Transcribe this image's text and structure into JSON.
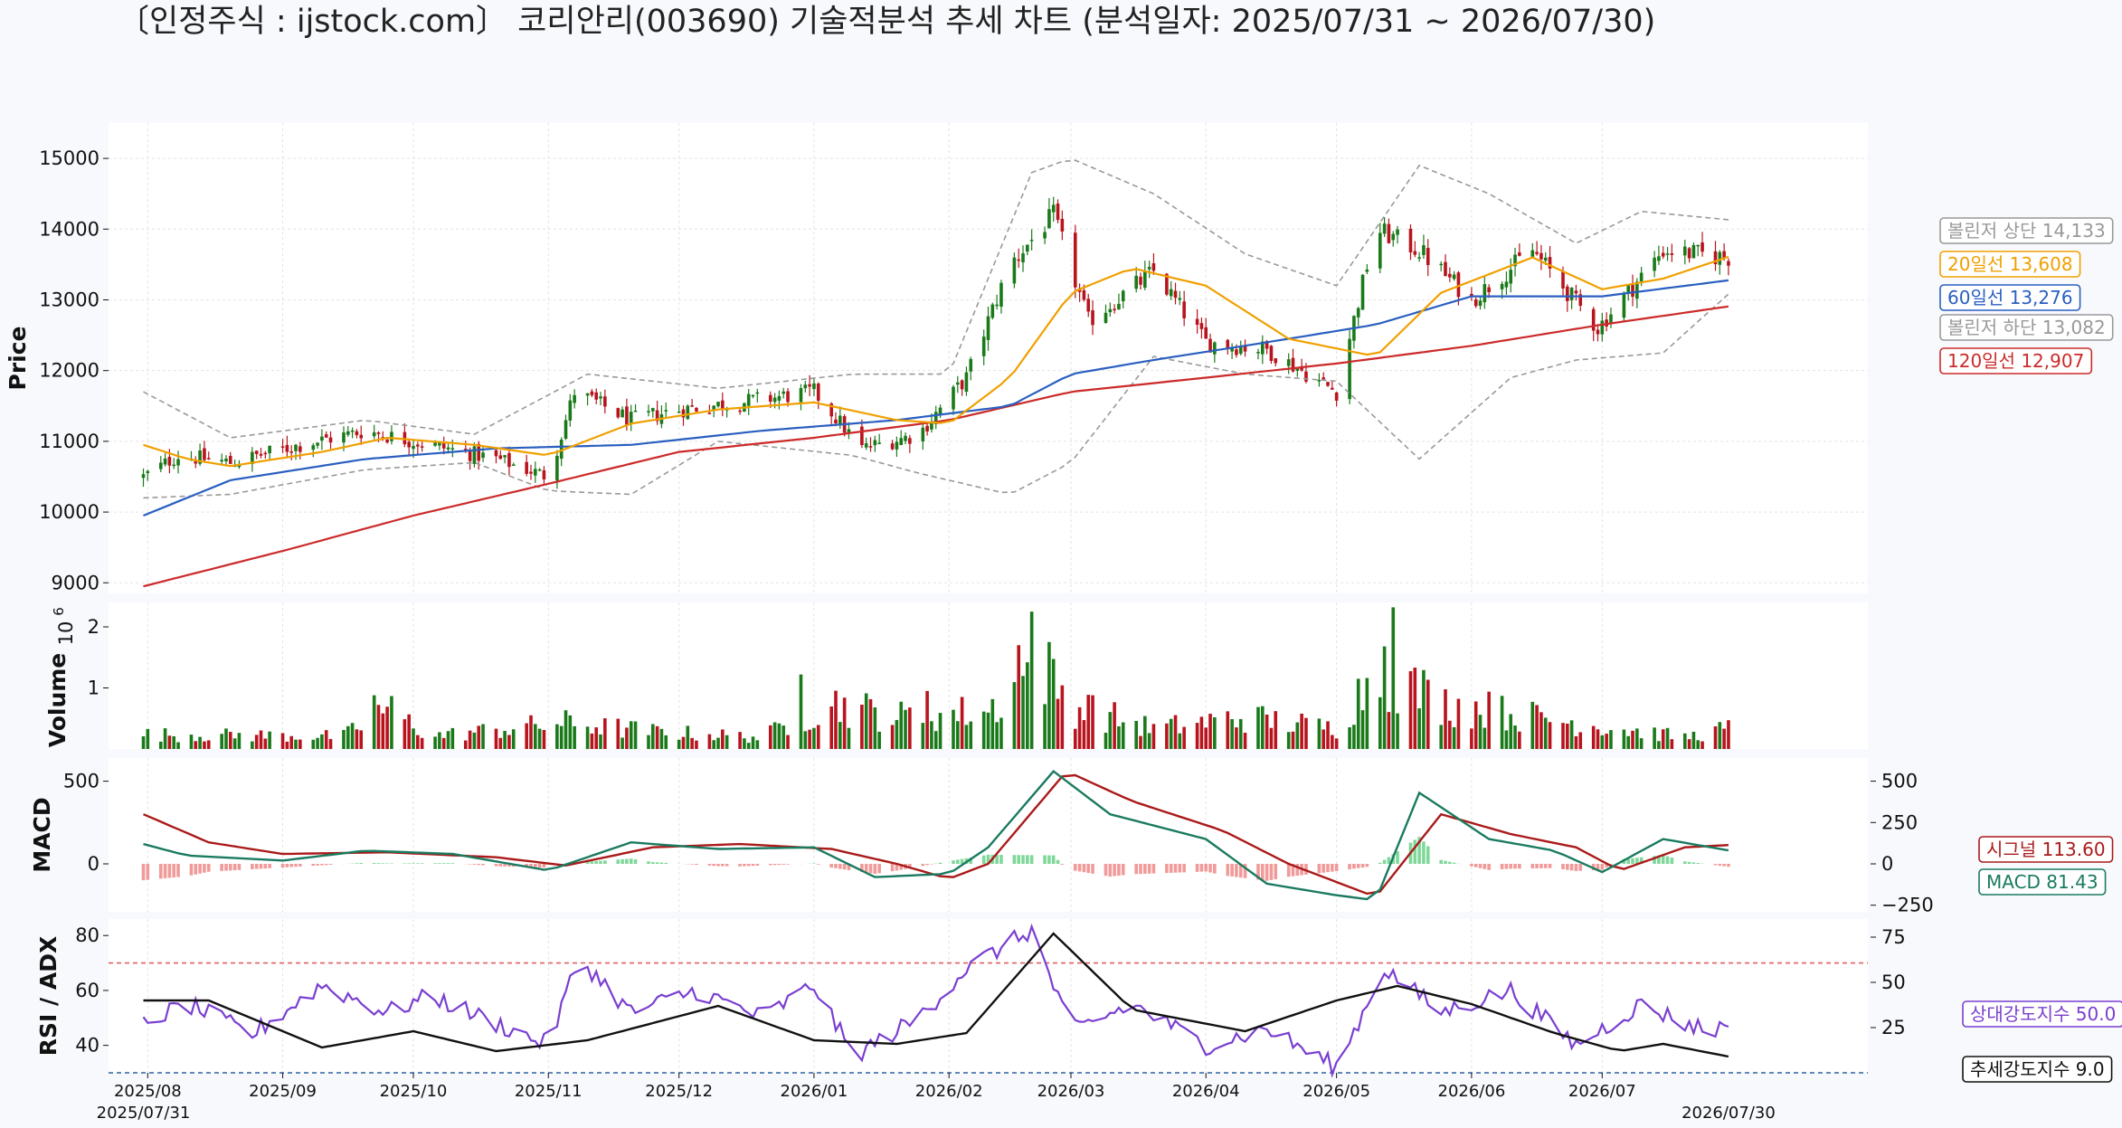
{
  "title": "〔인정주식 : ijstock.com〕 코리안리(003690) 기술적분석 추세 차트 (분석일자: 2025/07/31 ~ 2026/07/30)",
  "colors": {
    "up": "#1a7a1a",
    "down": "#b8141e",
    "ma20": "#f0a000",
    "ma60": "#2a5fc0",
    "ma120": "#cc2a2a",
    "bollinger": "#999999",
    "macd": "#1a7a60",
    "signal": "#aa1a1a",
    "hist_pos": "#7fd89a",
    "hist_neg": "#f19a9a",
    "rsi": "#7a3fd0",
    "adx": "#111111",
    "rsi_upper": "#e06060",
    "rsi_lower": "#3060a0"
  },
  "chart_data": [
    {
      "type": "candlestick",
      "ylabel": "Price",
      "ylim": [
        8850,
        15500
      ],
      "yticks": [
        9000,
        10000,
        11000,
        12000,
        13000,
        14000,
        15000
      ],
      "xlim": [
        "2025-07-23",
        "2026-08-31"
      ],
      "x_ticks": [
        {
          "date": "2025-08-01",
          "label": "2025/08"
        },
        {
          "date": "2025-09-01",
          "label": "2025/09"
        },
        {
          "date": "2025-10-01",
          "label": "2025/10"
        },
        {
          "date": "2025-11-01",
          "label": "2025/11"
        },
        {
          "date": "2025-12-01",
          "label": "2025/12"
        },
        {
          "date": "2026-01-01",
          "label": "2026/01"
        },
        {
          "date": "2026-02-01",
          "label": "2026/02"
        },
        {
          "date": "2026-03-01",
          "label": "2026/03"
        },
        {
          "date": "2026-04-01",
          "label": "2026/04"
        },
        {
          "date": "2026-05-01",
          "label": "2026/05"
        },
        {
          "date": "2026-06-01",
          "label": "2026/06"
        },
        {
          "date": "2026-07-01",
          "label": "2026/07"
        }
      ],
      "x_edge_labels": [
        {
          "date": "2025-07-31",
          "label": "2025/07/31"
        },
        {
          "date": "2026-07-30",
          "label": "2026/07/30"
        }
      ],
      "price_path": [
        [
          "2025-07-31",
          10500
        ],
        [
          "2025-08-08",
          10800
        ],
        [
          "2025-08-20",
          10700
        ],
        [
          "2025-09-05",
          10950
        ],
        [
          "2025-09-20",
          11150
        ],
        [
          "2025-10-01",
          11000
        ],
        [
          "2025-10-20",
          10750
        ],
        [
          "2025-11-01",
          10500
        ],
        [
          "2025-11-07",
          11700
        ],
        [
          "2025-11-20",
          11300
        ],
        [
          "2025-12-01",
          11450
        ],
        [
          "2025-12-15",
          11550
        ],
        [
          "2026-01-01",
          11700
        ],
        [
          "2026-01-12",
          10900
        ],
        [
          "2026-01-25",
          11100
        ],
        [
          "2026-02-05",
          11900
        ],
        [
          "2026-02-15",
          13500
        ],
        [
          "2026-02-25",
          14200
        ],
        [
          "2026-03-05",
          12700
        ],
        [
          "2026-03-20",
          13400
        ],
        [
          "2026-04-01",
          12400
        ],
        [
          "2026-04-15",
          12300
        ],
        [
          "2026-05-01",
          11700
        ],
        [
          "2026-05-10",
          14000
        ],
        [
          "2026-05-20",
          13700
        ],
        [
          "2026-06-01",
          13000
        ],
        [
          "2026-06-15",
          13700
        ],
        [
          "2026-06-30",
          12600
        ],
        [
          "2026-07-15",
          13700
        ],
        [
          "2026-07-30",
          13600
        ]
      ],
      "ma20": [
        [
          "2025-07-31",
          10950
        ],
        [
          "2025-08-10",
          10750
        ],
        [
          "2025-08-20",
          10650
        ],
        [
          "2025-09-10",
          10850
        ],
        [
          "2025-09-25",
          11050
        ],
        [
          "2025-10-15",
          10950
        ],
        [
          "2025-11-01",
          10800
        ],
        [
          "2025-11-20",
          11250
        ],
        [
          "2025-12-10",
          11450
        ],
        [
          "2026-01-01",
          11550
        ],
        [
          "2026-01-20",
          11300
        ],
        [
          "2026-02-01",
          11250
        ],
        [
          "2026-02-15",
          11900
        ],
        [
          "2026-03-01",
          13100
        ],
        [
          "2026-03-15",
          13450
        ],
        [
          "2026-04-01",
          13200
        ],
        [
          "2026-04-20",
          12450
        ],
        [
          "2026-05-10",
          12200
        ],
        [
          "2026-05-25",
          13100
        ],
        [
          "2026-06-15",
          13600
        ],
        [
          "2026-07-01",
          13150
        ],
        [
          "2026-07-15",
          13300
        ],
        [
          "2026-07-30",
          13608
        ]
      ],
      "ma60": [
        [
          "2025-07-31",
          9950
        ],
        [
          "2025-08-20",
          10450
        ],
        [
          "2025-09-20",
          10750
        ],
        [
          "2025-10-20",
          10900
        ],
        [
          "2025-11-20",
          10950
        ],
        [
          "2025-12-20",
          11150
        ],
        [
          "2026-01-20",
          11300
        ],
        [
          "2026-02-15",
          11500
        ],
        [
          "2026-03-01",
          11950
        ],
        [
          "2026-03-20",
          12150
        ],
        [
          "2026-04-15",
          12400
        ],
        [
          "2026-05-10",
          12650
        ],
        [
          "2026-06-01",
          13050
        ],
        [
          "2026-07-01",
          13050
        ],
        [
          "2026-07-30",
          13276
        ]
      ],
      "ma120": [
        [
          "2025-07-31",
          8950
        ],
        [
          "2025-09-01",
          9450
        ],
        [
          "2025-10-01",
          9950
        ],
        [
          "2025-11-01",
          10400
        ],
        [
          "2025-12-01",
          10850
        ],
        [
          "2026-01-01",
          11050
        ],
        [
          "2026-02-01",
          11300
        ],
        [
          "2026-03-01",
          11700
        ],
        [
          "2026-04-01",
          11900
        ],
        [
          "2026-05-01",
          12100
        ],
        [
          "2026-06-01",
          12350
        ],
        [
          "2026-07-01",
          12650
        ],
        [
          "2026-07-30",
          12907
        ]
      ],
      "bollinger_upper": [
        [
          "2025-07-31",
          11700
        ],
        [
          "2025-08-20",
          11050
        ],
        [
          "2025-09-20",
          11300
        ],
        [
          "2025-10-15",
          11100
        ],
        [
          "2025-11-10",
          11950
        ],
        [
          "2025-12-10",
          11750
        ],
        [
          "2026-01-10",
          11950
        ],
        [
          "2026-02-01",
          11950
        ],
        [
          "2026-02-20",
          14800
        ],
        [
          "2026-03-01",
          15000
        ],
        [
          "2026-03-20",
          14500
        ],
        [
          "2026-04-10",
          13650
        ],
        [
          "2026-05-01",
          13200
        ],
        [
          "2026-05-20",
          14900
        ],
        [
          "2026-06-05",
          14500
        ],
        [
          "2026-06-25",
          13800
        ],
        [
          "2026-07-10",
          14250
        ],
        [
          "2026-07-30",
          14133
        ]
      ],
      "bollinger_lower": [
        [
          "2025-07-31",
          10200
        ],
        [
          "2025-08-20",
          10250
        ],
        [
          "2025-09-20",
          10600
        ],
        [
          "2025-10-15",
          10700
        ],
        [
          "2025-11-01",
          10300
        ],
        [
          "2025-11-20",
          10250
        ],
        [
          "2025-12-10",
          11000
        ],
        [
          "2026-01-10",
          10800
        ],
        [
          "2026-01-25",
          10550
        ],
        [
          "2026-02-15",
          10250
        ],
        [
          "2026-03-01",
          10700
        ],
        [
          "2026-03-20",
          12200
        ],
        [
          "2026-04-10",
          11950
        ],
        [
          "2026-05-01",
          11850
        ],
        [
          "2026-05-20",
          10750
        ],
        [
          "2026-06-10",
          11900
        ],
        [
          "2026-06-25",
          12150
        ],
        [
          "2026-07-15",
          12250
        ],
        [
          "2026-07-30",
          13082
        ]
      ],
      "legend": [
        {
          "label": "볼린저 상단 14,133",
          "color": "#999999"
        },
        {
          "label": "20일선 13,608",
          "color": "#f0a000"
        },
        {
          "label": "60일선 13,276",
          "color": "#2a5fc0"
        },
        {
          "label": "볼린저 하단 13,082",
          "color": "#999999"
        },
        {
          "label": "120일선 12,907",
          "color": "#cc2a2a"
        }
      ]
    },
    {
      "type": "bar",
      "ylabel": "Volume",
      "yscale_label": "10",
      "yscale_exponent": "6",
      "ylim": [
        0,
        2400000
      ],
      "yticks": [
        1000000,
        2000000
      ],
      "ytick_labels": [
        "1",
        "2"
      ],
      "base_volume": [
        [
          "2025-07-31",
          250000
        ],
        [
          "2025-09-15",
          220000
        ],
        [
          "2025-09-25",
          700000
        ],
        [
          "2025-10-05",
          220000
        ],
        [
          "2025-11-05",
          450000
        ],
        [
          "2025-11-25",
          300000
        ],
        [
          "2025-12-20",
          200000
        ],
        [
          "2026-01-05",
          800000
        ],
        [
          "2026-01-20",
          550000
        ],
        [
          "2026-02-10",
          650000
        ],
        [
          "2026-02-22",
          1500000
        ],
        [
          "2026-03-01",
          750000
        ],
        [
          "2026-03-20",
          350000
        ],
        [
          "2026-04-10",
          550000
        ],
        [
          "2026-05-01",
          350000
        ],
        [
          "2026-05-10",
          1400000
        ],
        [
          "2026-05-25",
          800000
        ],
        [
          "2026-06-20",
          500000
        ],
        [
          "2026-07-20",
          200000
        ],
        [
          "2026-07-30",
          350000
        ]
      ],
      "spikes": [
        [
          "2025-09-22",
          880000
        ],
        [
          "2025-11-08",
          620000
        ],
        [
          "2025-12-29",
          1220000
        ],
        [
          "2026-01-27",
          950000
        ],
        [
          "2026-02-17",
          1700000
        ],
        [
          "2026-02-20",
          2250000
        ],
        [
          "2026-03-06",
          880000
        ],
        [
          "2026-05-12",
          1680000
        ],
        [
          "2026-05-14",
          2320000
        ],
        [
          "2026-05-31",
          820000
        ],
        [
          "2026-06-08",
          870000
        ]
      ]
    },
    {
      "type": "line",
      "ylabel": "MACD",
      "ylim": [
        -290,
        640
      ],
      "yticks_left": [
        0,
        500
      ],
      "yticks_right": [
        -250,
        0,
        250,
        500
      ],
      "macd": [
        [
          "2025-07-31",
          120
        ],
        [
          "2025-08-10",
          50
        ],
        [
          "2025-09-01",
          20
        ],
        [
          "2025-09-20",
          80
        ],
        [
          "2025-10-10",
          60
        ],
        [
          "2025-11-01",
          -40
        ],
        [
          "2025-11-20",
          130
        ],
        [
          "2025-12-10",
          90
        ],
        [
          "2026-01-01",
          100
        ],
        [
          "2026-01-15",
          -80
        ],
        [
          "2026-02-01",
          -60
        ],
        [
          "2026-02-10",
          100
        ],
        [
          "2026-02-25",
          560
        ],
        [
          "2026-03-10",
          300
        ],
        [
          "2026-04-01",
          150
        ],
        [
          "2026-04-15",
          -120
        ],
        [
          "2026-05-01",
          -190
        ],
        [
          "2026-05-10",
          -220
        ],
        [
          "2026-05-20",
          430
        ],
        [
          "2026-06-05",
          150
        ],
        [
          "2026-06-20",
          80
        ],
        [
          "2026-07-01",
          -50
        ],
        [
          "2026-07-15",
          150
        ],
        [
          "2026-07-30",
          81.43
        ]
      ],
      "signal": [
        [
          "2025-07-31",
          300
        ],
        [
          "2025-08-15",
          130
        ],
        [
          "2025-09-01",
          60
        ],
        [
          "2025-09-25",
          70
        ],
        [
          "2025-10-20",
          40
        ],
        [
          "2025-11-05",
          -10
        ],
        [
          "2025-11-25",
          100
        ],
        [
          "2025-12-15",
          120
        ],
        [
          "2026-01-05",
          90
        ],
        [
          "2026-01-20",
          0
        ],
        [
          "2026-02-01",
          -90
        ],
        [
          "2026-02-10",
          0
        ],
        [
          "2026-02-28",
          560
        ],
        [
          "2026-03-15",
          380
        ],
        [
          "2026-04-05",
          200
        ],
        [
          "2026-04-20",
          0
        ],
        [
          "2026-05-10",
          -200
        ],
        [
          "2026-05-25",
          300
        ],
        [
          "2026-06-10",
          180
        ],
        [
          "2026-06-25",
          100
        ],
        [
          "2026-07-05",
          -40
        ],
        [
          "2026-07-20",
          100
        ],
        [
          "2026-07-30",
          113.6
        ]
      ],
      "legend": [
        {
          "label": "시그널 113.60",
          "color": "#aa1a1a"
        },
        {
          "label": "MACD 81.43",
          "color": "#1a7a60"
        }
      ]
    },
    {
      "type": "line",
      "ylabel": "RSI / ADX",
      "ylim": [
        30,
        86
      ],
      "yticks_left": [
        40,
        60,
        80
      ],
      "ylim_right": [
        0,
        85
      ],
      "yticks_right": [
        25,
        50,
        75
      ],
      "thresholds": {
        "upper": 70,
        "lower": 30
      },
      "rsi": [
        [
          "2025-07-31",
          48
        ],
        [
          "2025-08-10",
          55
        ],
        [
          "2025-08-25",
          44
        ],
        [
          "2025-09-10",
          62
        ],
        [
          "2025-09-25",
          52
        ],
        [
          "2025-10-05",
          58
        ],
        [
          "2025-10-20",
          48
        ],
        [
          "2025-11-01",
          40
        ],
        [
          "2025-11-08",
          72
        ],
        [
          "2025-11-20",
          52
        ],
        [
          "2025-12-05",
          60
        ],
        [
          "2025-12-20",
          50
        ],
        [
          "2026-01-01",
          62
        ],
        [
          "2026-01-10",
          36
        ],
        [
          "2026-01-25",
          50
        ],
        [
          "2026-02-05",
          68
        ],
        [
          "2026-02-20",
          82
        ],
        [
          "2026-03-01",
          45
        ],
        [
          "2026-03-15",
          55
        ],
        [
          "2026-04-01",
          40
        ],
        [
          "2026-04-15",
          46
        ],
        [
          "2026-05-01",
          32
        ],
        [
          "2026-05-12",
          68
        ],
        [
          "2026-05-25",
          52
        ],
        [
          "2026-06-10",
          60
        ],
        [
          "2026-06-25",
          40
        ],
        [
          "2026-07-10",
          55
        ],
        [
          "2026-07-20",
          48
        ],
        [
          "2026-07-27",
          45
        ],
        [
          "2026-07-30",
          50.0
        ]
      ],
      "adx": [
        [
          "2025-07-31",
          40
        ],
        [
          "2025-08-15",
          40
        ],
        [
          "2025-09-10",
          14
        ],
        [
          "2025-10-01",
          23
        ],
        [
          "2025-10-20",
          12
        ],
        [
          "2025-11-10",
          18
        ],
        [
          "2025-12-10",
          37
        ],
        [
          "2026-01-01",
          18
        ],
        [
          "2026-01-20",
          16
        ],
        [
          "2026-02-05",
          22
        ],
        [
          "2026-02-25",
          77
        ],
        [
          "2026-03-15",
          35
        ],
        [
          "2026-04-10",
          23
        ],
        [
          "2026-05-01",
          40
        ],
        [
          "2026-05-15",
          48
        ],
        [
          "2026-06-01",
          38
        ],
        [
          "2026-06-20",
          22
        ],
        [
          "2026-07-05",
          12
        ],
        [
          "2026-07-15",
          16
        ],
        [
          "2026-07-30",
          9.0
        ]
      ],
      "legend": [
        {
          "label": "상대강도지수 50.0",
          "color": "#7a3fd0"
        },
        {
          "label": "추세강도지수 9.0",
          "color": "#111111"
        }
      ]
    }
  ]
}
